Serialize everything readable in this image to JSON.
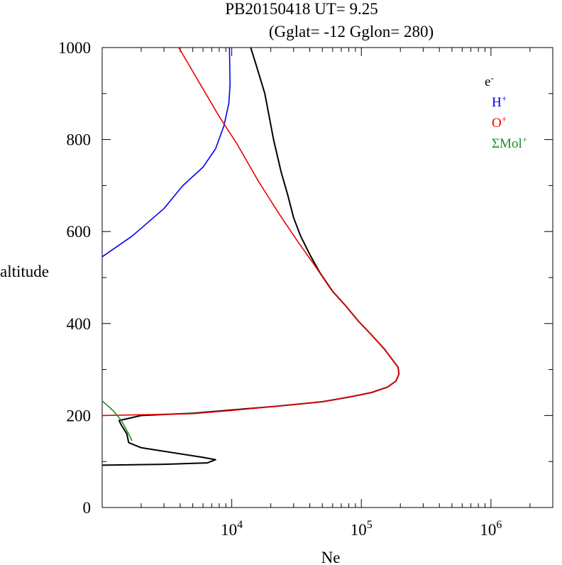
{
  "chart_data": {
    "type": "line",
    "title_line1": "PB20150418   UT=  9.25",
    "title_line2": "(Gglat= -12   Gglon=  280)",
    "xlabel": "Ne",
    "ylabel": "altitude",
    "x_scale": "log",
    "xlim": [
      1000,
      3000000
    ],
    "ylim": [
      0,
      1000
    ],
    "y_ticks": [
      {
        "value": 0,
        "label": "0"
      },
      {
        "value": 200,
        "label": "200"
      },
      {
        "value": 400,
        "label": "400"
      },
      {
        "value": 600,
        "label": "600"
      },
      {
        "value": 800,
        "label": "800"
      },
      {
        "value": 1000,
        "label": "1000"
      }
    ],
    "x_ticks": [
      {
        "value": 10000,
        "base": "10",
        "exp": "4"
      },
      {
        "value": 100000,
        "base": "10",
        "exp": "5"
      },
      {
        "value": 1000000,
        "base": "10",
        "exp": "6"
      }
    ],
    "legend_position": "top-right",
    "series": [
      {
        "key": "e",
        "name_base": "e",
        "name_sup": "-",
        "color": "#000000",
        "points": [
          [
            1000,
            92
          ],
          [
            3000,
            94
          ],
          [
            6500,
            97
          ],
          [
            7500,
            104
          ],
          [
            6000,
            109
          ],
          [
            2000,
            130
          ],
          [
            1600,
            141
          ],
          [
            1550,
            160
          ],
          [
            1400,
            180
          ],
          [
            1350,
            189
          ],
          [
            2000,
            200
          ],
          [
            5000,
            205
          ],
          [
            10000,
            212
          ],
          [
            22000,
            220
          ],
          [
            50000,
            230
          ],
          [
            80000,
            240
          ],
          [
            120000,
            250
          ],
          [
            160000,
            262
          ],
          [
            185000,
            275
          ],
          [
            195000,
            290
          ],
          [
            192000,
            305
          ],
          [
            175000,
            320
          ],
          [
            150000,
            345
          ],
          [
            120000,
            375
          ],
          [
            95000,
            405
          ],
          [
            75000,
            440
          ],
          [
            60000,
            470
          ],
          [
            48000,
            510
          ],
          [
            40000,
            550
          ],
          [
            34000,
            590
          ],
          [
            30000,
            630
          ],
          [
            27000,
            680
          ],
          [
            24000,
            730
          ],
          [
            21000,
            800
          ],
          [
            18000,
            900
          ],
          [
            15500,
            960
          ],
          [
            14000,
            1000
          ]
        ]
      },
      {
        "key": "h",
        "name_base": "H",
        "name_sup": "+",
        "color": "#0000ee",
        "points": [
          [
            1000,
            545
          ],
          [
            1700,
            590
          ],
          [
            3000,
            650
          ],
          [
            4200,
            700
          ],
          [
            6000,
            740
          ],
          [
            7500,
            780
          ],
          [
            8700,
            830
          ],
          [
            9500,
            880
          ],
          [
            9700,
            920
          ],
          [
            9650,
            960
          ],
          [
            9600,
            1000
          ]
        ]
      },
      {
        "key": "o",
        "name_base": "O",
        "name_sup": "+",
        "color": "#ee0000",
        "points": [
          [
            1000,
            200
          ],
          [
            5000,
            204
          ],
          [
            10000,
            211
          ],
          [
            22000,
            220
          ],
          [
            50000,
            230
          ],
          [
            80000,
            240
          ],
          [
            120000,
            250
          ],
          [
            160000,
            262
          ],
          [
            185000,
            275
          ],
          [
            195000,
            290
          ],
          [
            192000,
            305
          ],
          [
            175000,
            320
          ],
          [
            150000,
            345
          ],
          [
            120000,
            375
          ],
          [
            95000,
            405
          ],
          [
            75000,
            440
          ],
          [
            58000,
            475
          ],
          [
            44000,
            525
          ],
          [
            32000,
            580
          ],
          [
            23000,
            640
          ],
          [
            16000,
            710
          ],
          [
            11000,
            790
          ],
          [
            8000,
            850
          ],
          [
            6000,
            910
          ],
          [
            4500,
            970
          ],
          [
            3900,
            1000
          ]
        ]
      },
      {
        "key": "mol",
        "name_base": "ΣMol",
        "name_sup": "+",
        "color": "#228b22",
        "points": [
          [
            1000,
            232
          ],
          [
            1200,
            212
          ],
          [
            1400,
            190
          ],
          [
            1600,
            160
          ],
          [
            1700,
            145
          ]
        ]
      }
    ]
  }
}
